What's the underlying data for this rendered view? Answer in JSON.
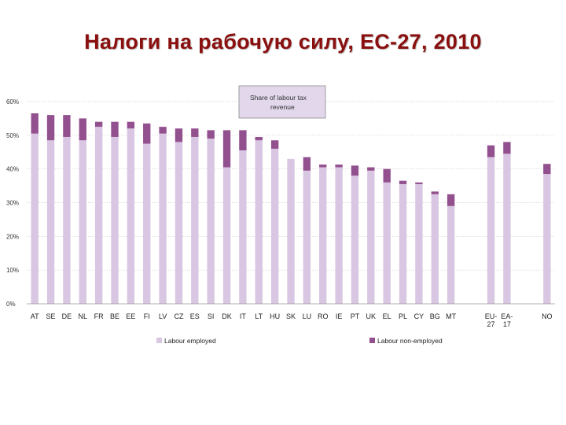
{
  "title": "Налоги на рабочую силу, ЕС-27, 2010",
  "chart_data": {
    "type": "bar",
    "stacked": true,
    "categories": [
      "AT",
      "SE",
      "DE",
      "NL",
      "FR",
      "BE",
      "EE",
      "FI",
      "LV",
      "CZ",
      "ES",
      "SI",
      "DK",
      "IT",
      "LT",
      "HU",
      "SK",
      "LU",
      "RO",
      "IE",
      "PT",
      "UK",
      "EL",
      "PL",
      "CY",
      "BG",
      "MT",
      "EU-27",
      "EA-17",
      "NO"
    ],
    "category_groups": [
      27,
      2,
      1
    ],
    "series": [
      {
        "name": "Labour employed",
        "color": "#d9c6e2",
        "values": [
          50.5,
          48.5,
          49.5,
          48.5,
          52.5,
          49.5,
          52,
          47.5,
          50.5,
          48,
          49.5,
          49,
          40.5,
          45.5,
          48.5,
          46,
          43,
          39.5,
          40.5,
          40.5,
          38,
          39.5,
          36,
          35.5,
          35.5,
          32.5,
          29,
          43.5,
          44.5,
          38.5
        ]
      },
      {
        "name": "Labour non-employed",
        "color": "#93508f",
        "values": [
          6,
          7.5,
          6.5,
          6.5,
          1.5,
          4.5,
          2,
          6,
          2,
          4,
          2.5,
          2.5,
          11,
          6,
          1,
          2.5,
          0,
          4,
          0.8,
          0.8,
          3,
          1,
          4,
          1,
          0.5,
          0.8,
          3.5,
          3.5,
          3.5,
          3
        ]
      }
    ],
    "y_ticks": [
      "0%",
      "10%",
      "20%",
      "30%",
      "40%",
      "50%",
      "60%"
    ],
    "ylim": [
      0,
      60
    ],
    "grid": true,
    "legend_position": "bottom",
    "annotation": [
      "Share of labour tax",
      "revenue"
    ]
  }
}
